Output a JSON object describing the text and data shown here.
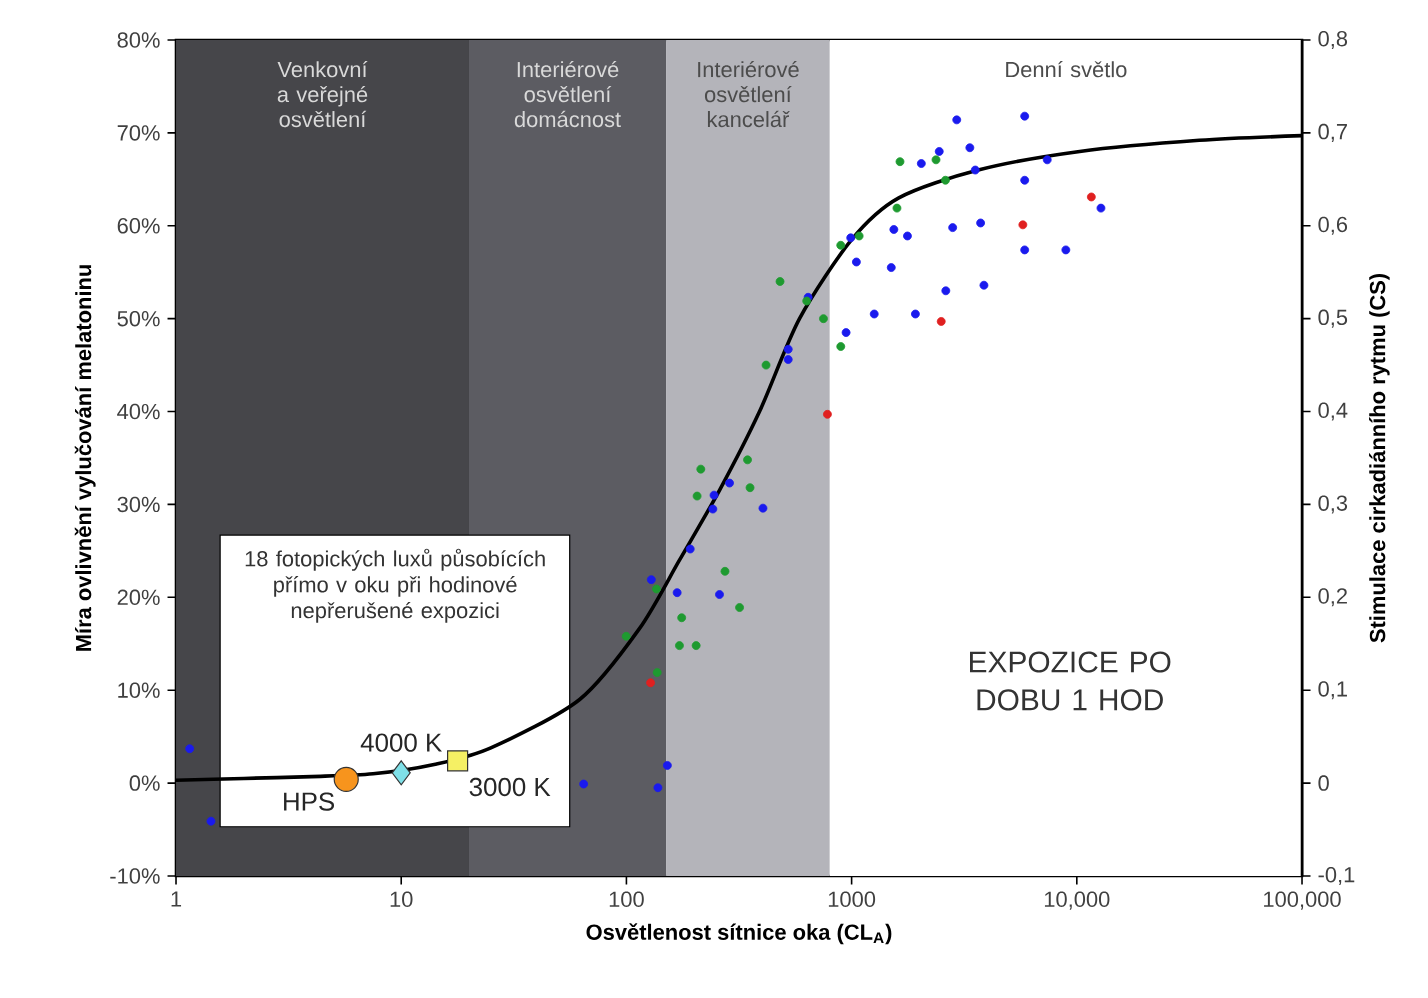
{
  "chart_data": {
    "type": "scatter",
    "xlabel": "Osvětlenost sítnice oka (CL$_{A}$)",
    "ylabel": "Míra ovlivnění vylučování melatoninu",
    "y2label": "Stimulace cirkadiánního rytmu (CS)",
    "log": "x",
    "xlim": [
      1,
      100000
    ],
    "xticks": [
      1,
      10,
      100,
      1000,
      {
        "value": 10000,
        "label": "10,000"
      },
      {
        "value": 100000,
        "label": "100,000"
      }
    ],
    "ylim": [
      -10,
      80
    ],
    "yticks": [
      {
        "value": -10,
        "label": "-10%"
      },
      {
        "value": 0,
        "label": "0%"
      },
      {
        "value": 10,
        "label": "10%"
      },
      {
        "value": 20,
        "label": "20%"
      },
      {
        "value": 30,
        "label": "30%"
      },
      {
        "value": 40,
        "label": "40%"
      },
      {
        "value": 50,
        "label": "50%"
      },
      {
        "value": 60,
        "label": "60%"
      },
      {
        "value": 70,
        "label": "70%"
      },
      {
        "value": 80,
        "label": "80%"
      }
    ],
    "y2lim": [
      -0.1,
      0.8
    ],
    "y2ticks": [
      {
        "value": -0.1,
        "label": "-0,1"
      },
      0,
      {
        "value": 0.1,
        "label": "0,1"
      },
      {
        "value": 0.2,
        "label": "0,2"
      },
      {
        "value": 0.3,
        "label": "0,3"
      },
      {
        "value": 0.4,
        "label": "0,4"
      },
      {
        "value": 0.5,
        "label": "0,5"
      },
      {
        "value": 0.6,
        "label": "0,6"
      },
      {
        "value": 0.7,
        "label": "0,7"
      },
      {
        "value": 0.8,
        "label": "0,8"
      }
    ],
    "bands": [
      {
        "axis": "x",
        "from": 1,
        "to": 20,
        "label": "Venkovní a veřejné osvětlení",
        "color": "#46464a"
      },
      {
        "axis": "x",
        "from": 20,
        "to": 150,
        "label": "Interiérové osvětlení domácnost",
        "color": "#5c5c62"
      },
      {
        "axis": "x",
        "from": 150,
        "to": 800,
        "label": "Interiérové osvětlení kancelář",
        "color": "#b4b4ba"
      },
      {
        "axis": "x",
        "from": 800,
        "to": 100000,
        "label": "Denní světlo",
        "color": "#ffffff"
      }
    ],
    "series": [
      {
        "type": "line",
        "color": "#000000",
        "line_style": "solid",
        "x": [
          1,
          2,
          4,
          7.5,
          14,
          25,
          62,
          114,
          172,
          260,
          390,
          587,
          1000,
          1620,
          3650,
          10300,
          35000,
          100000
        ],
        "values": [
          0.3,
          0.5,
          0.7,
          1.0,
          2.0,
          3.8,
          9,
          16.6,
          24,
          31.6,
          40,
          50,
          58.5,
          63,
          66,
          68,
          69.2,
          69.7
        ]
      },
      {
        "color": "#1a1aee",
        "marker": "circle",
        "x": [
          2930,
          5870,
          3350,
          2450,
          2040,
          3540,
          5870,
          7390,
          12800,
          8940,
          5870,
          3740,
          2810,
          1770,
          1540,
          1500,
          1050,
          991,
          2620,
          3870,
          1920,
          1260,
          945,
          641,
          523,
          523,
          287,
          245,
          404,
          242,
          192,
          129,
          168,
          259,
          152,
          138,
          64.6,
          1.15,
          1.43
        ],
        "values": [
          71.4,
          71.8,
          68.4,
          68.0,
          66.7,
          66.0,
          64.9,
          67.1,
          61.9,
          57.4,
          57.4,
          60.3,
          59.8,
          58.9,
          59.6,
          55.5,
          56.1,
          58.7,
          53.0,
          53.6,
          50.5,
          50.5,
          48.5,
          52.3,
          46.7,
          45.6,
          32.3,
          31.0,
          29.6,
          29.5,
          25.2,
          21.9,
          20.5,
          20.3,
          1.9,
          -0.5,
          -0.1,
          3.7,
          -4.1
        ]
      },
      {
        "color": "#1e9a30",
        "marker": "circle",
        "x": [
          1640,
          2370,
          2610,
          1590,
          1080,
          895,
          481,
          632,
          750,
          895,
          417,
          214,
          206,
          345,
          354,
          274,
          136,
          176,
          99.8,
          172,
          204,
          318,
          137
        ],
        "values": [
          66.9,
          67.1,
          64.9,
          61.9,
          58.9,
          57.9,
          54.0,
          51.9,
          50.0,
          47.0,
          45.0,
          33.8,
          30.9,
          34.8,
          31.8,
          22.8,
          20.9,
          17.8,
          15.8,
          14.8,
          14.8,
          18.9,
          11.9
        ]
      },
      {
        "color": "#e02020",
        "marker": "circle",
        "x": [
          11600,
          5760,
          2500,
          781,
          128
        ],
        "values": [
          63.1,
          60.1,
          49.7,
          39.7,
          10.8
        ]
      },
      {
        "color": "#f7941d",
        "marker": "circle",
        "x": [
          5.7
        ],
        "values": [
          0.4
        ]
      },
      {
        "color": "#7fe0e8",
        "marker": "diamond",
        "x": [
          10
        ],
        "values": [
          1.1
        ]
      },
      {
        "color": "#f5f064",
        "marker": "square",
        "x": [
          17.8
        ],
        "values": [
          2.4
        ]
      }
    ],
    "annotations": [
      "18 fotopických luxů působících přímo v oku při hodinové nepřerušené expozici",
      {
        "text": "HPS",
        "x": 5.7,
        "y": 0.4
      },
      {
        "text": "4000 K",
        "x": 10,
        "y": 1.1
      },
      {
        "text": "3000 K",
        "x": 17.8,
        "y": 2.4
      },
      "EXPOZICE PO DOBU 1 HOD"
    ]
  }
}
